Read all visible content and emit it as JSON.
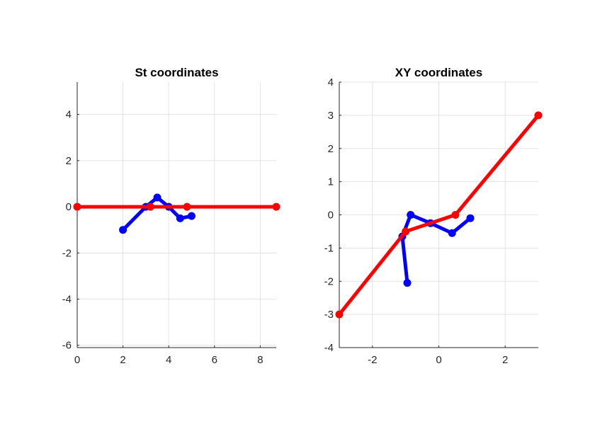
{
  "chart_data": [
    {
      "type": "line",
      "title": "St coordinates",
      "xlabel": "",
      "ylabel": "",
      "xlim": [
        0,
        8.7
      ],
      "ylim": [
        -6.1,
        5.4
      ],
      "xticks": [
        0,
        2,
        4,
        6,
        8
      ],
      "yticks": [
        -6,
        -4,
        -2,
        0,
        2,
        4
      ],
      "grid": true,
      "box": false,
      "series": [
        {
          "color": "#0000ff",
          "x": [
            2.0,
            3.0,
            3.5,
            4.0,
            4.5,
            5.0
          ],
          "y": [
            -1.0,
            0.0,
            0.4,
            0.0,
            -0.5,
            -0.4
          ]
        },
        {
          "color": "#ff0000",
          "x": [
            0.0,
            3.2,
            4.8,
            8.7
          ],
          "y": [
            0.0,
            0.0,
            0.0,
            0.0
          ]
        }
      ]
    },
    {
      "type": "line",
      "title": "XY coordinates",
      "xlabel": "",
      "ylabel": "",
      "xlim": [
        -3,
        3
      ],
      "ylim": [
        -4,
        4
      ],
      "xticks": [
        -2,
        0,
        2
      ],
      "yticks": [
        -4,
        -3,
        -2,
        -1,
        0,
        1,
        2,
        3,
        4
      ],
      "grid": true,
      "box": false,
      "series": [
        {
          "color": "#0000ff",
          "x": [
            -0.95,
            -1.1,
            -0.85,
            -0.25,
            0.4,
            0.95
          ],
          "y": [
            -2.05,
            -0.65,
            0.0,
            -0.25,
            -0.55,
            -0.1
          ]
        },
        {
          "color": "#ff0000",
          "x": [
            -3.0,
            -1.0,
            0.5,
            3.0
          ],
          "y": [
            -3.0,
            -0.5,
            0.0,
            3.0
          ]
        }
      ]
    }
  ]
}
